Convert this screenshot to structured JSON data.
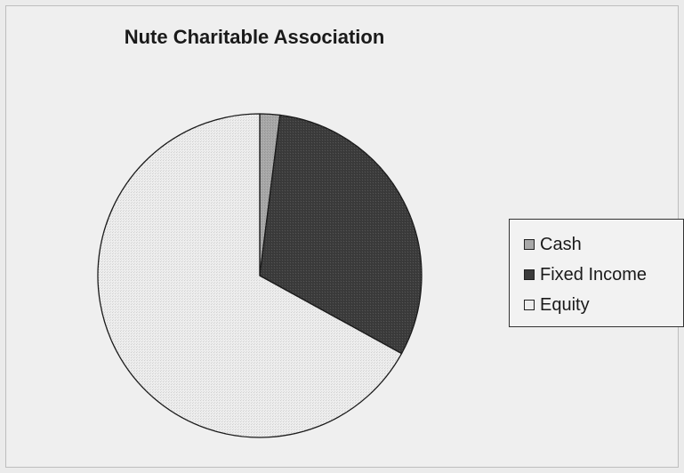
{
  "chart_data": {
    "type": "pie",
    "title": "Nute Charitable Association",
    "legend_position": "right",
    "start_angle_deg": 0,
    "direction": "clockwise",
    "slices": [
      {
        "label": "Cash",
        "value": 2,
        "color": "#a8a8a8"
      },
      {
        "label": "Fixed Income",
        "value": 31,
        "color": "#3c3c3c"
      },
      {
        "label": "Equity",
        "value": 67,
        "color": "#ededed"
      }
    ]
  }
}
